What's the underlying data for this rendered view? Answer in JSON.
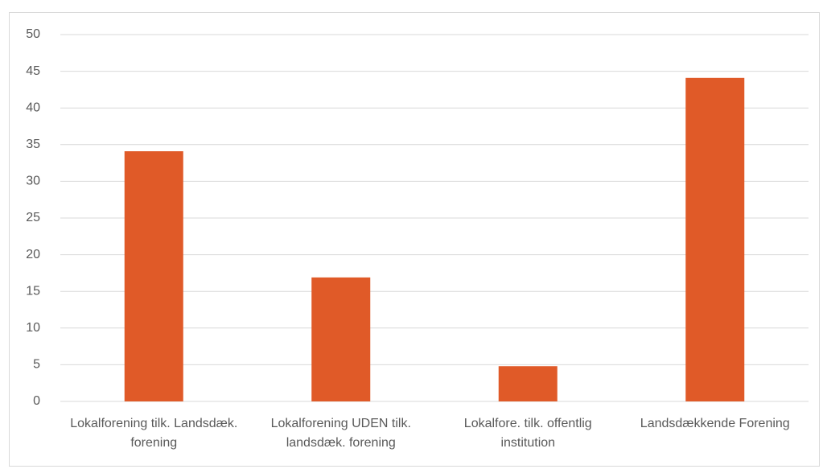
{
  "chart_data": {
    "type": "bar",
    "categories": [
      "Lokalforening tilk. Landsdæk. forening",
      "Lokalforening UDEN tilk. landsdæk. forening",
      "Lokalfore. tilk. offentlig institution",
      "Landsdækkende Forening"
    ],
    "values": [
      34.1,
      16.9,
      4.8,
      44.1
    ],
    "color": "#e05a28",
    "ylim": [
      0,
      50
    ],
    "yticks": [
      0,
      5,
      10,
      15,
      20,
      25,
      30,
      35,
      40,
      45,
      50
    ],
    "grid": true
  }
}
